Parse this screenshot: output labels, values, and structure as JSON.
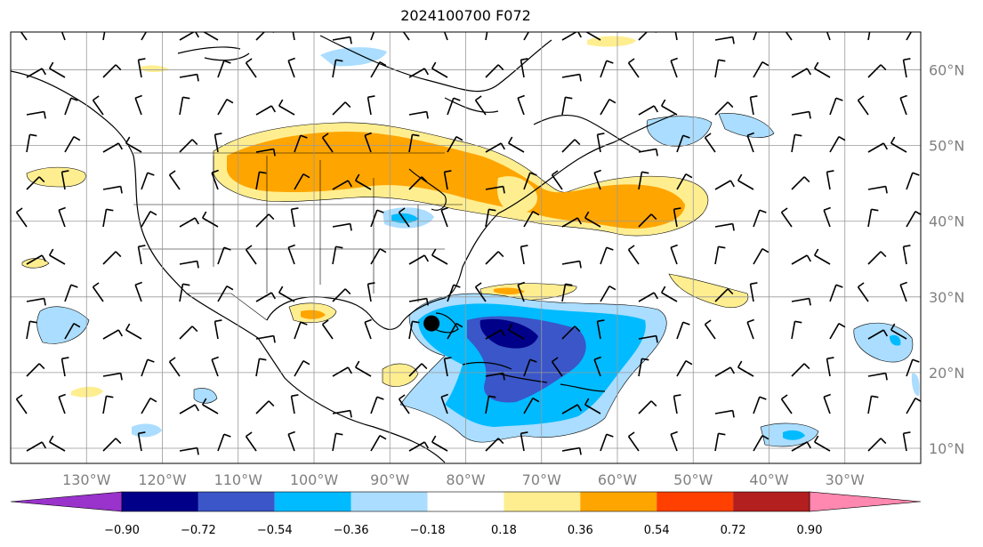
{
  "title": "2024100700 F072",
  "map": {
    "lon_range": [
      -140,
      -20
    ],
    "lat_range": [
      8,
      65
    ],
    "lon_labels": [
      "130°W",
      "120°W",
      "110°W",
      "100°W",
      "90°W",
      "80°W",
      "70°W",
      "60°W",
      "50°W",
      "40°W",
      "30°W"
    ],
    "lon_values": [
      -130,
      -120,
      -110,
      -100,
      -90,
      -80,
      -70,
      -60,
      -50,
      -40,
      -30
    ],
    "lat_labels": [
      "10°N",
      "20°N",
      "30°N",
      "40°N",
      "50°N",
      "60°N"
    ],
    "lat_values": [
      10,
      20,
      30,
      40,
      50,
      60
    ],
    "storm_center": {
      "lon": -84.5,
      "lat": 26.5
    }
  },
  "colorbar": {
    "labels": [
      "−0.90",
      "−0.72",
      "−0.54",
      "−0.36",
      "−0.18",
      "0.18",
      "0.36",
      "0.54",
      "0.72",
      "0.90"
    ],
    "levels": [
      -0.9,
      -0.72,
      -0.54,
      -0.36,
      -0.18,
      0.18,
      0.36,
      0.54,
      0.72,
      0.9
    ],
    "colors": [
      "#000088",
      "#3a56c8",
      "#00bbff",
      "#aaddff",
      "#ffffff",
      "#ffee90",
      "#ffa500",
      "#ff4000",
      "#b31e1e"
    ],
    "under_color": "#9933cc",
    "over_color": "#ff88b0"
  }
}
